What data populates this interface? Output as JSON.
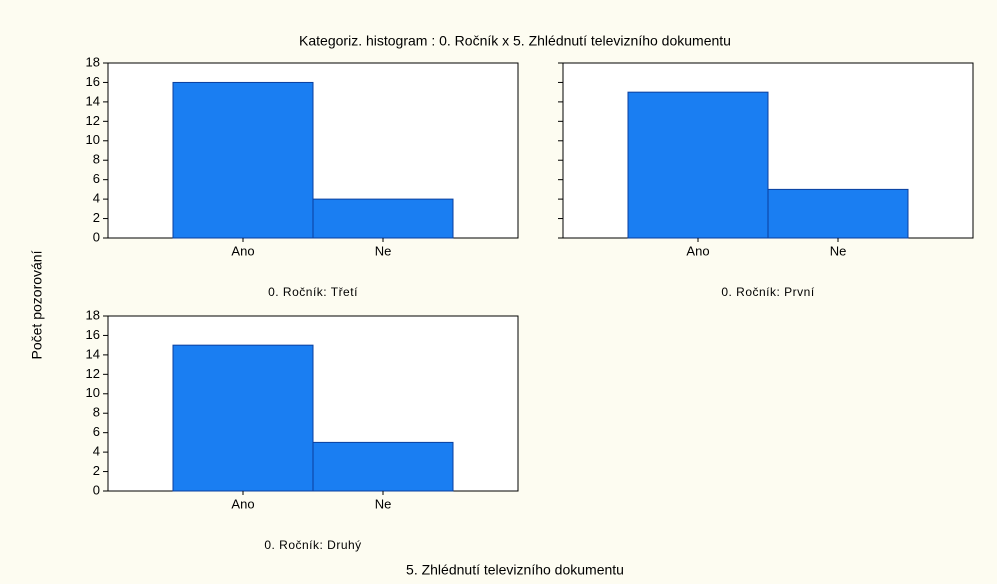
{
  "title": "Kategoriz. histogram : 0. Ročník x 5. Zhlédnutí televizního dokumentu",
  "ylabel": "Počet pozorování",
  "xlabel": "5. Zhlédnutí televizního dokumentu",
  "chart_data": [
    {
      "type": "bar",
      "subtitle": "0. Ročník: Třetí",
      "categories": [
        "Ano",
        "Ne"
      ],
      "values": [
        16,
        4
      ],
      "color": "#1a7ef2",
      "ylim": [
        0,
        18
      ],
      "yticks": [
        0,
        2,
        4,
        6,
        8,
        10,
        12,
        14,
        16,
        18
      ],
      "tick_labels": true
    },
    {
      "type": "bar",
      "subtitle": "0. Ročník: První",
      "categories": [
        "Ano",
        "Ne"
      ],
      "values": [
        15,
        5
      ],
      "color": "#1a7ef2",
      "ylim": [
        0,
        18
      ],
      "yticks": [
        0,
        2,
        4,
        6,
        8,
        10,
        12,
        14,
        16,
        18
      ],
      "tick_labels": false
    },
    {
      "type": "bar",
      "subtitle": "0. Ročník: Druhý",
      "categories": [
        "Ano",
        "Ne"
      ],
      "values": [
        15,
        5
      ],
      "color": "#1a7ef2",
      "ylim": [
        0,
        18
      ],
      "yticks": [
        0,
        2,
        4,
        6,
        8,
        10,
        12,
        14,
        16,
        18
      ],
      "tick_labels": true
    }
  ]
}
